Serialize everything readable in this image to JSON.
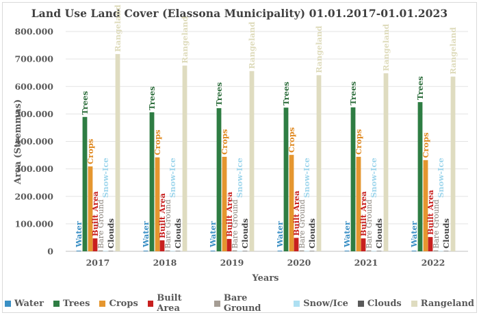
{
  "chart_data": {
    "type": "bar",
    "title": "Land Use Land Cover (Elassona Municipality) 01.01.2017-01.01.2023",
    "xlabel": "Years",
    "ylabel": "Area (Stremmas)",
    "ylim": [
      0,
      800000
    ],
    "yticks": [
      0,
      100000,
      200000,
      300000,
      400000,
      500000,
      600000,
      700000,
      800000
    ],
    "ytick_labels": [
      "0",
      "100.000",
      "200.000",
      "300.000",
      "400.000",
      "500.000",
      "600.000",
      "700.000",
      "800.000"
    ],
    "grid": true,
    "legend_position": "bottom",
    "categories": [
      "2017",
      "2018",
      "2019",
      "2020",
      "2021",
      "2022"
    ],
    "series": [
      {
        "name": "Water",
        "label": "Water",
        "color": "#3a8fc4",
        "label_color": "#3a8fc4",
        "values": [
          2500,
          2500,
          2500,
          2500,
          2500,
          2500
        ]
      },
      {
        "name": "Trees",
        "label": "Trees",
        "color": "#2e7d43",
        "label_color": "#2e6e3d",
        "values": [
          489000,
          506000,
          521000,
          523000,
          524000,
          543000
        ]
      },
      {
        "name": "Crops",
        "label": "Crops",
        "color": "#e5962f",
        "label_color": "#e08a22",
        "values": [
          309000,
          342000,
          344000,
          351000,
          344000,
          332000
        ]
      },
      {
        "name": "Built Area",
        "label": "Built Area",
        "color": "#c8201f",
        "label_color": "#c8201f",
        "values": [
          47000,
          40000,
          45000,
          49000,
          47000,
          52000
        ]
      },
      {
        "name": "Bare Ground",
        "label": "Bare Ground",
        "color": "#a59d94",
        "label_color": "#8a837b",
        "values": [
          3500,
          3500,
          3500,
          3500,
          3500,
          3500
        ]
      },
      {
        "name": "Snow/Ice",
        "label": "Snow-Ice",
        "color": "#aee0f2",
        "label_color": "#9fd6ec",
        "values": [
          200,
          200,
          200,
          200,
          200,
          200
        ]
      },
      {
        "name": "Clouds",
        "label": "Clouds",
        "color": "#5a5a5a",
        "label_color": "#404040",
        "values": [
          1500,
          1500,
          1500,
          1500,
          1500,
          1500
        ]
      },
      {
        "name": "Rangeland",
        "label": "Rangeland",
        "color": "#dfdcc0",
        "label_color": "#dedbbb",
        "values": [
          718000,
          676000,
          656000,
          641000,
          648000,
          636000
        ]
      }
    ]
  }
}
